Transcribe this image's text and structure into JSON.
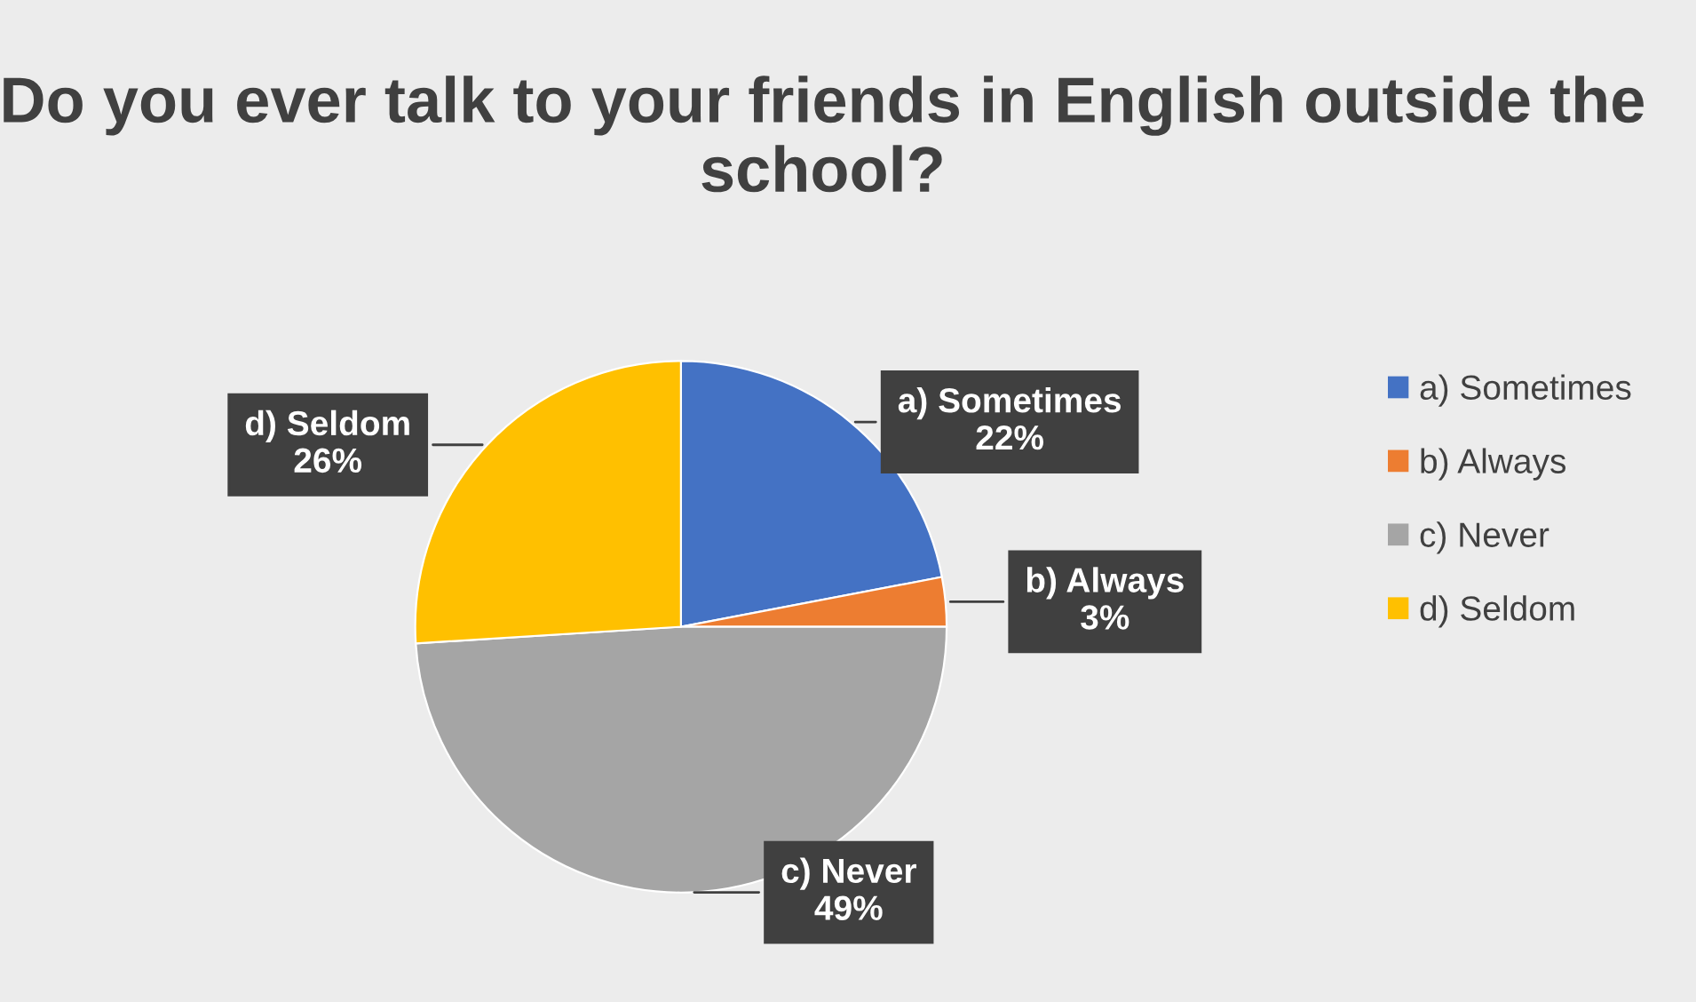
{
  "chart_data": {
    "type": "pie",
    "title": "Do you ever talk to your friends in English outside the school?",
    "categories": [
      "a) Sometimes",
      "b) Always",
      "c) Never",
      "d) Seldom"
    ],
    "values": [
      22,
      3,
      49,
      26
    ],
    "value_labels": [
      "22%",
      "3%",
      "49%",
      "26%"
    ],
    "colors": [
      "#4472c4",
      "#ed7d31",
      "#a5a5a5",
      "#ffc000"
    ],
    "legend": "right"
  }
}
